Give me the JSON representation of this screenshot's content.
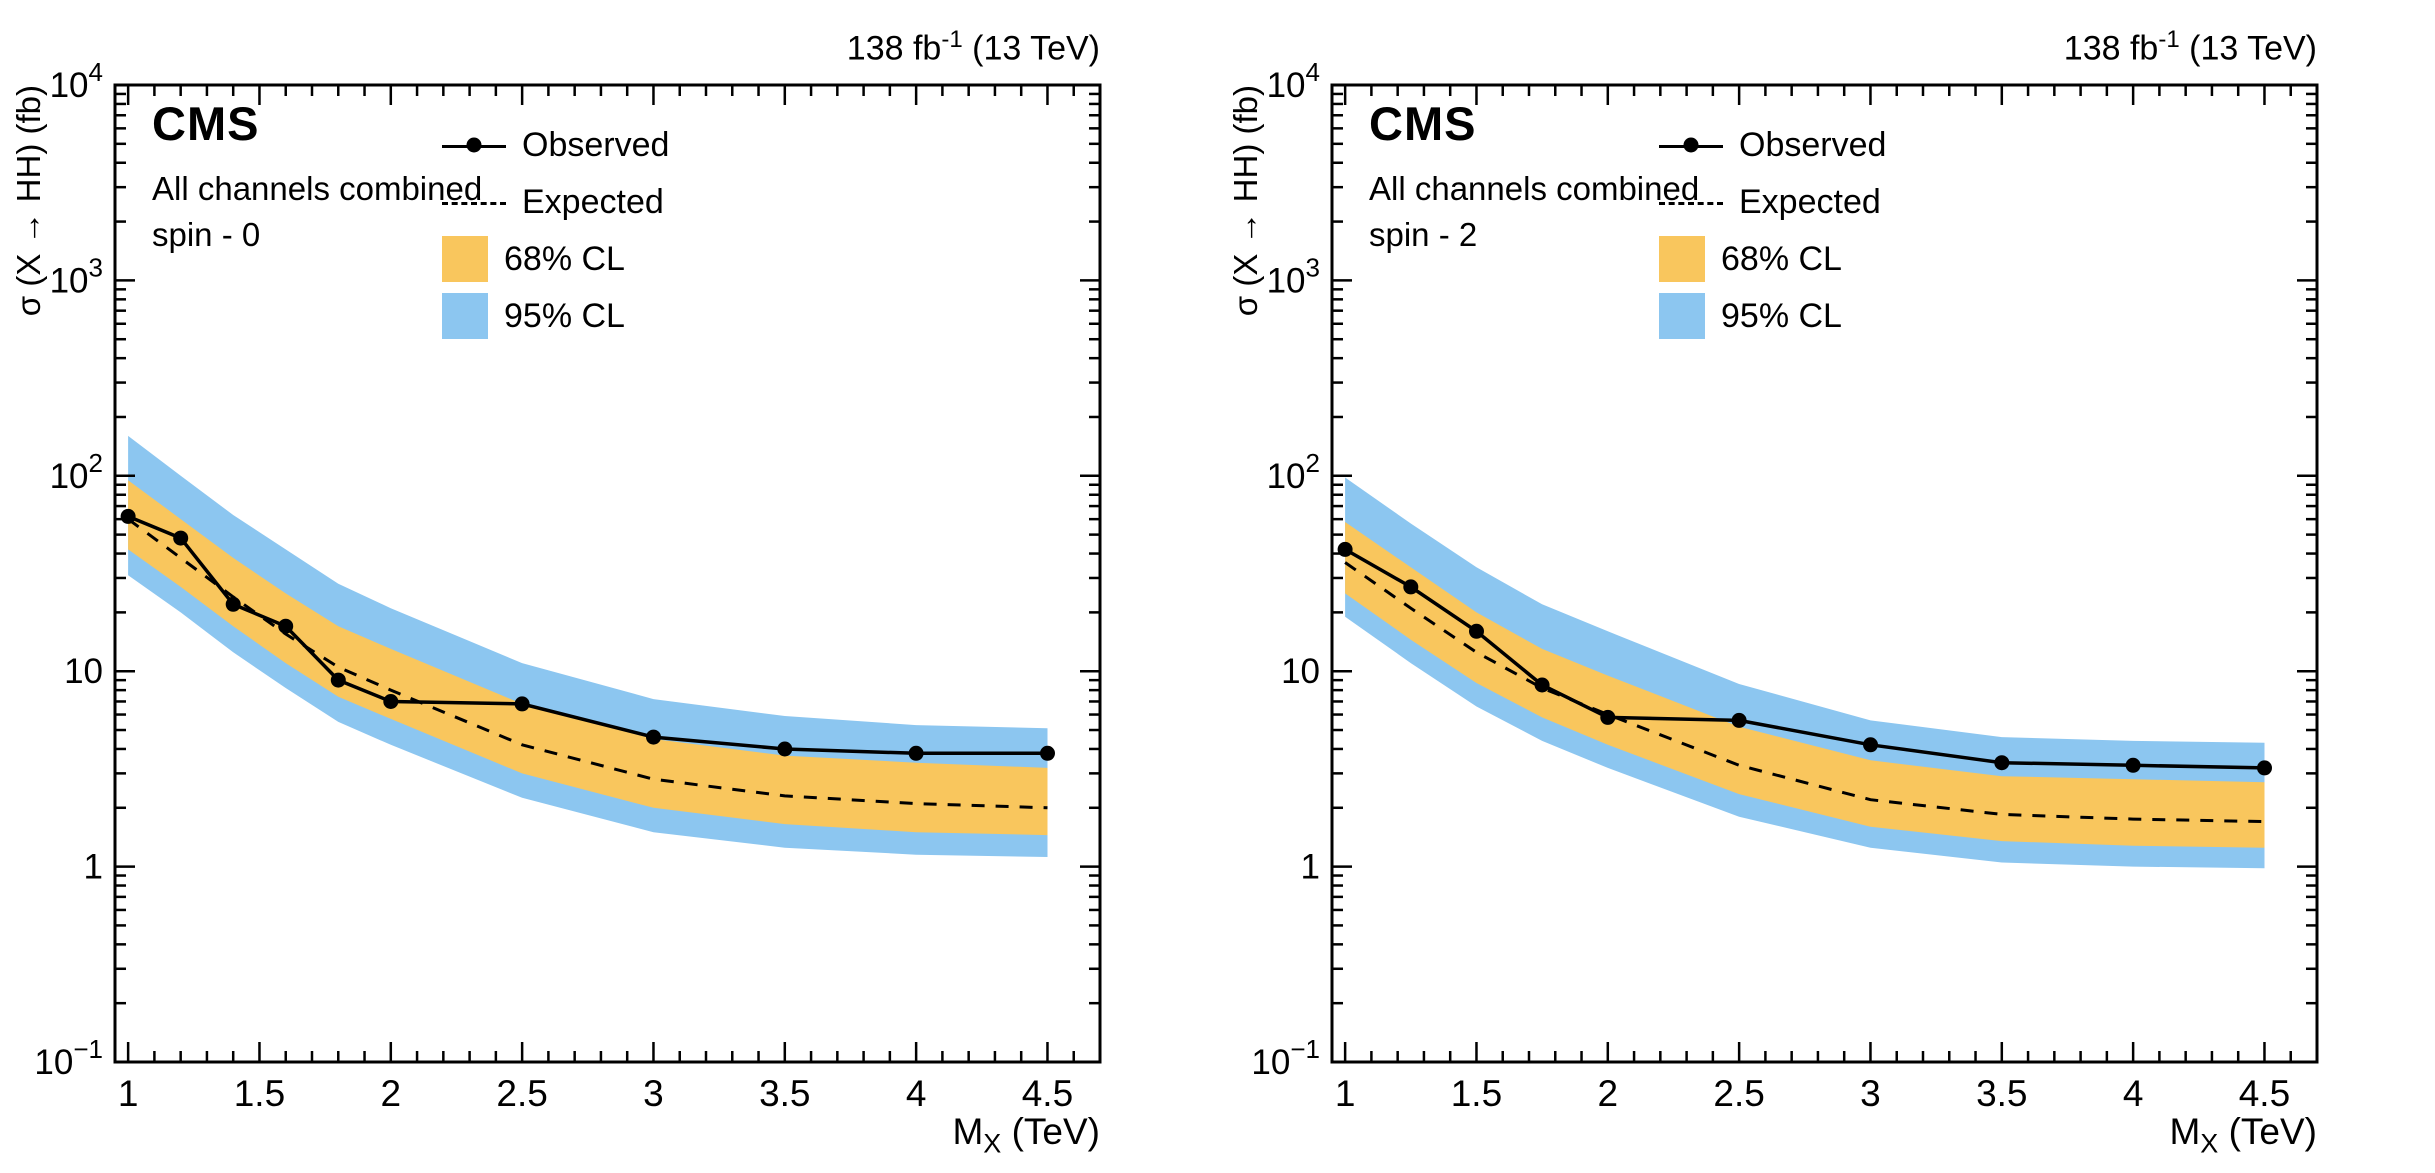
{
  "chart_data": [
    {
      "type": "line",
      "cms_label": "CMS",
      "subtitle1": "All channels combined",
      "subtitle2": "spin - 0",
      "lumi": {
        "text": "138 fb",
        "sup": "-1",
        "rest": " (13 TeV)"
      },
      "xlabel": {
        "main": "M",
        "sub": "X",
        "rest": " (TeV)"
      },
      "ylabel": "σ (X → HH)  (fb)",
      "xlim": [
        0.95,
        4.7
      ],
      "ylim": [
        0.1,
        10000
      ],
      "yscale": "log",
      "grid": false,
      "legend_position": "top-right-inside",
      "x_ticks": [
        1,
        1.5,
        2,
        2.5,
        3,
        3.5,
        4,
        4.5
      ],
      "legend": [
        {
          "label": "Observed",
          "style": "line-marker"
        },
        {
          "label": "Expected",
          "style": "dashed-line"
        },
        {
          "label": "68% CL",
          "style": "band"
        },
        {
          "label": "95% CL",
          "style": "band"
        }
      ],
      "colors": {
        "observed": "#000000",
        "expected": "#000000",
        "band68": "#F9C65D",
        "band95": "#8CC6F0"
      },
      "x": [
        1.0,
        1.2,
        1.4,
        1.6,
        1.8,
        2.0,
        2.5,
        3.0,
        3.5,
        4.0,
        4.5
      ],
      "observed": [
        62,
        48,
        22,
        17,
        9.0,
        7.0,
        6.8,
        4.6,
        4.0,
        3.8,
        3.8
      ],
      "expected": [
        60,
        38,
        24,
        15.5,
        10.5,
        8.0,
        4.2,
        2.8,
        2.3,
        2.1,
        2.0
      ],
      "band68_up": [
        95,
        60,
        38,
        25,
        17,
        13,
        6.8,
        4.5,
        3.7,
        3.4,
        3.2
      ],
      "band68_down": [
        42,
        27,
        17,
        11,
        7.4,
        5.7,
        3.0,
        2.0,
        1.65,
        1.5,
        1.45
      ],
      "band95_up": [
        160,
        100,
        63,
        42,
        28,
        21,
        11,
        7.2,
        5.9,
        5.3,
        5.1
      ],
      "band95_down": [
        31,
        20,
        12.5,
        8.2,
        5.5,
        4.2,
        2.25,
        1.5,
        1.25,
        1.15,
        1.12
      ]
    },
    {
      "type": "line",
      "cms_label": "CMS",
      "subtitle1": "All channels combined",
      "subtitle2": "spin - 2",
      "lumi": {
        "text": "138 fb",
        "sup": "-1",
        "rest": " (13 TeV)"
      },
      "xlabel": {
        "main": "M",
        "sub": "X",
        "rest": " (TeV)"
      },
      "ylabel": "σ (X → HH)  (fb)",
      "xlim": [
        0.95,
        4.7
      ],
      "ylim": [
        0.1,
        10000
      ],
      "yscale": "log",
      "grid": false,
      "legend_position": "top-right-inside",
      "x_ticks": [
        1,
        1.5,
        2,
        2.5,
        3,
        3.5,
        4,
        4.5
      ],
      "legend": [
        {
          "label": "Observed",
          "style": "line-marker"
        },
        {
          "label": "Expected",
          "style": "dashed-line"
        },
        {
          "label": "68% CL",
          "style": "band"
        },
        {
          "label": "95% CL",
          "style": "band"
        }
      ],
      "colors": {
        "observed": "#000000",
        "expected": "#000000",
        "band68": "#F9C65D",
        "band95": "#8CC6F0"
      },
      "x": [
        1.0,
        1.25,
        1.5,
        1.75,
        2.0,
        2.5,
        3.0,
        3.5,
        4.0,
        4.5
      ],
      "observed": [
        42,
        27,
        16,
        8.5,
        5.8,
        5.6,
        4.2,
        3.4,
        3.3,
        3.2
      ],
      "expected": [
        36,
        21,
        12.5,
        8.2,
        6.0,
        3.3,
        2.2,
        1.85,
        1.75,
        1.7
      ],
      "band68_up": [
        58,
        34,
        20,
        13,
        9.5,
        5.2,
        3.5,
        2.9,
        2.8,
        2.7
      ],
      "band68_down": [
        25,
        14.5,
        8.7,
        5.8,
        4.2,
        2.35,
        1.6,
        1.35,
        1.28,
        1.25
      ],
      "band95_up": [
        98,
        57,
        34,
        22,
        16,
        8.6,
        5.6,
        4.6,
        4.4,
        4.3
      ],
      "band95_down": [
        19,
        11,
        6.6,
        4.4,
        3.2,
        1.8,
        1.25,
        1.05,
        1.0,
        0.98
      ]
    }
  ]
}
